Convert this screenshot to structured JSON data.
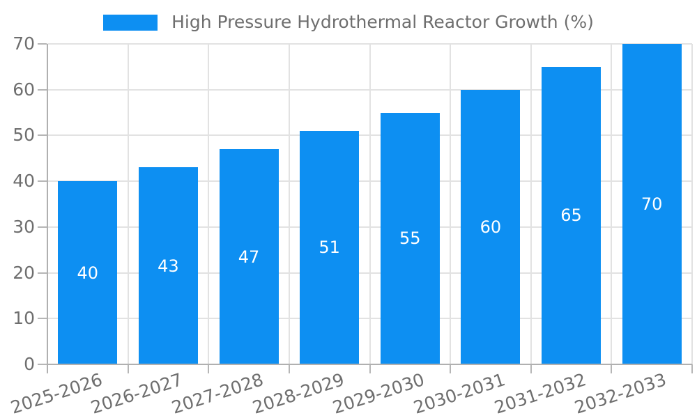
{
  "legend": {
    "label": "High Pressure Hydrothermal Reactor Growth (%)"
  },
  "chart_data": {
    "type": "bar",
    "title": "High Pressure Hydrothermal Reactor Growth (%)",
    "categories": [
      "2025-2026",
      "2026-2027",
      "2027-2028",
      "2028-2029",
      "2029-2030",
      "2030-2031",
      "2031-2032",
      "2032-2033"
    ],
    "values": [
      40,
      43,
      47,
      51,
      55,
      60,
      65,
      70
    ],
    "bar_value_labels": [
      "40",
      "43",
      "47",
      "51",
      "55",
      "60",
      "65",
      "70"
    ],
    "xlabel": "",
    "ylabel": "",
    "ylim": [
      0,
      70
    ],
    "yticks": [
      0,
      10,
      20,
      30,
      40,
      50,
      60,
      70
    ],
    "grid": true,
    "legend_position": "top-center",
    "x_label_rotation_deg": -18
  },
  "colors": {
    "bar": "#0d8ff2",
    "bar_label_text": "#ffffff",
    "axis_line": "#b0b0b0",
    "tick_mark": "#b6b6b6",
    "gridline": "#e2e2e2",
    "axis_text": "#6e6e6e",
    "background": "#ffffff"
  }
}
